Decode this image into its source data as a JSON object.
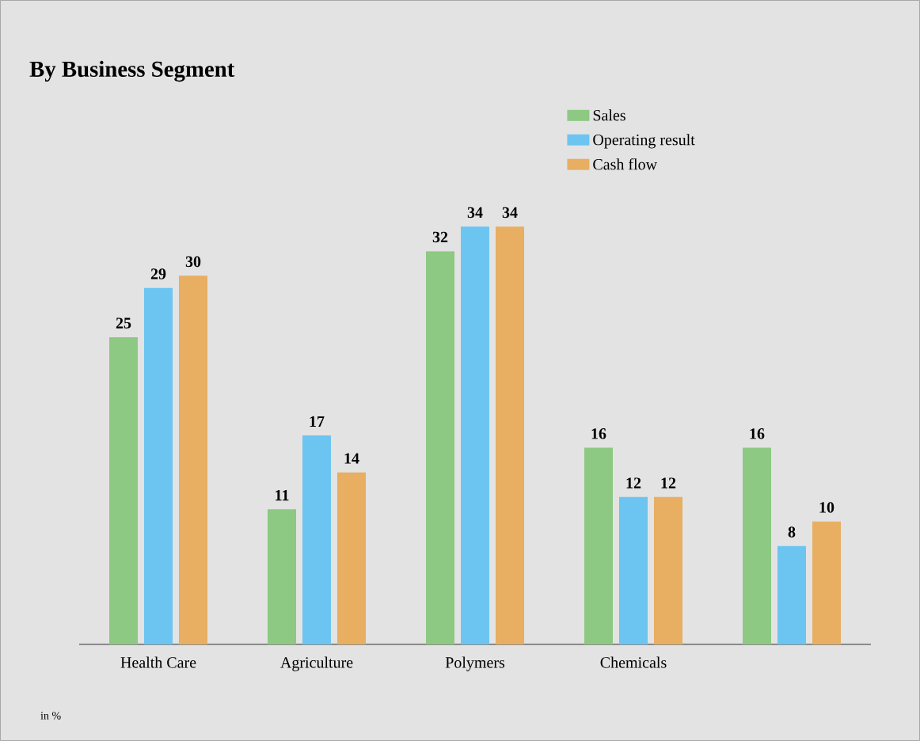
{
  "chart_data": {
    "type": "bar",
    "title": "By Business Segment",
    "categories": [
      "Health Care",
      "Agriculture",
      "Polymers",
      "Chemicals",
      null
    ],
    "series": [
      {
        "name": "Sales",
        "color": "#8dc983",
        "values": [
          25,
          11,
          32,
          16,
          16
        ]
      },
      {
        "name": "Operating result",
        "color": "#6bc5f0",
        "values": [
          29,
          17,
          34,
          12,
          8
        ]
      },
      {
        "name": "Cash flow",
        "color": "#e8ae62",
        "values": [
          30,
          14,
          34,
          12,
          10
        ]
      }
    ],
    "data_labels": true,
    "legend": "top right",
    "annotations": [
      "in %"
    ]
  }
}
